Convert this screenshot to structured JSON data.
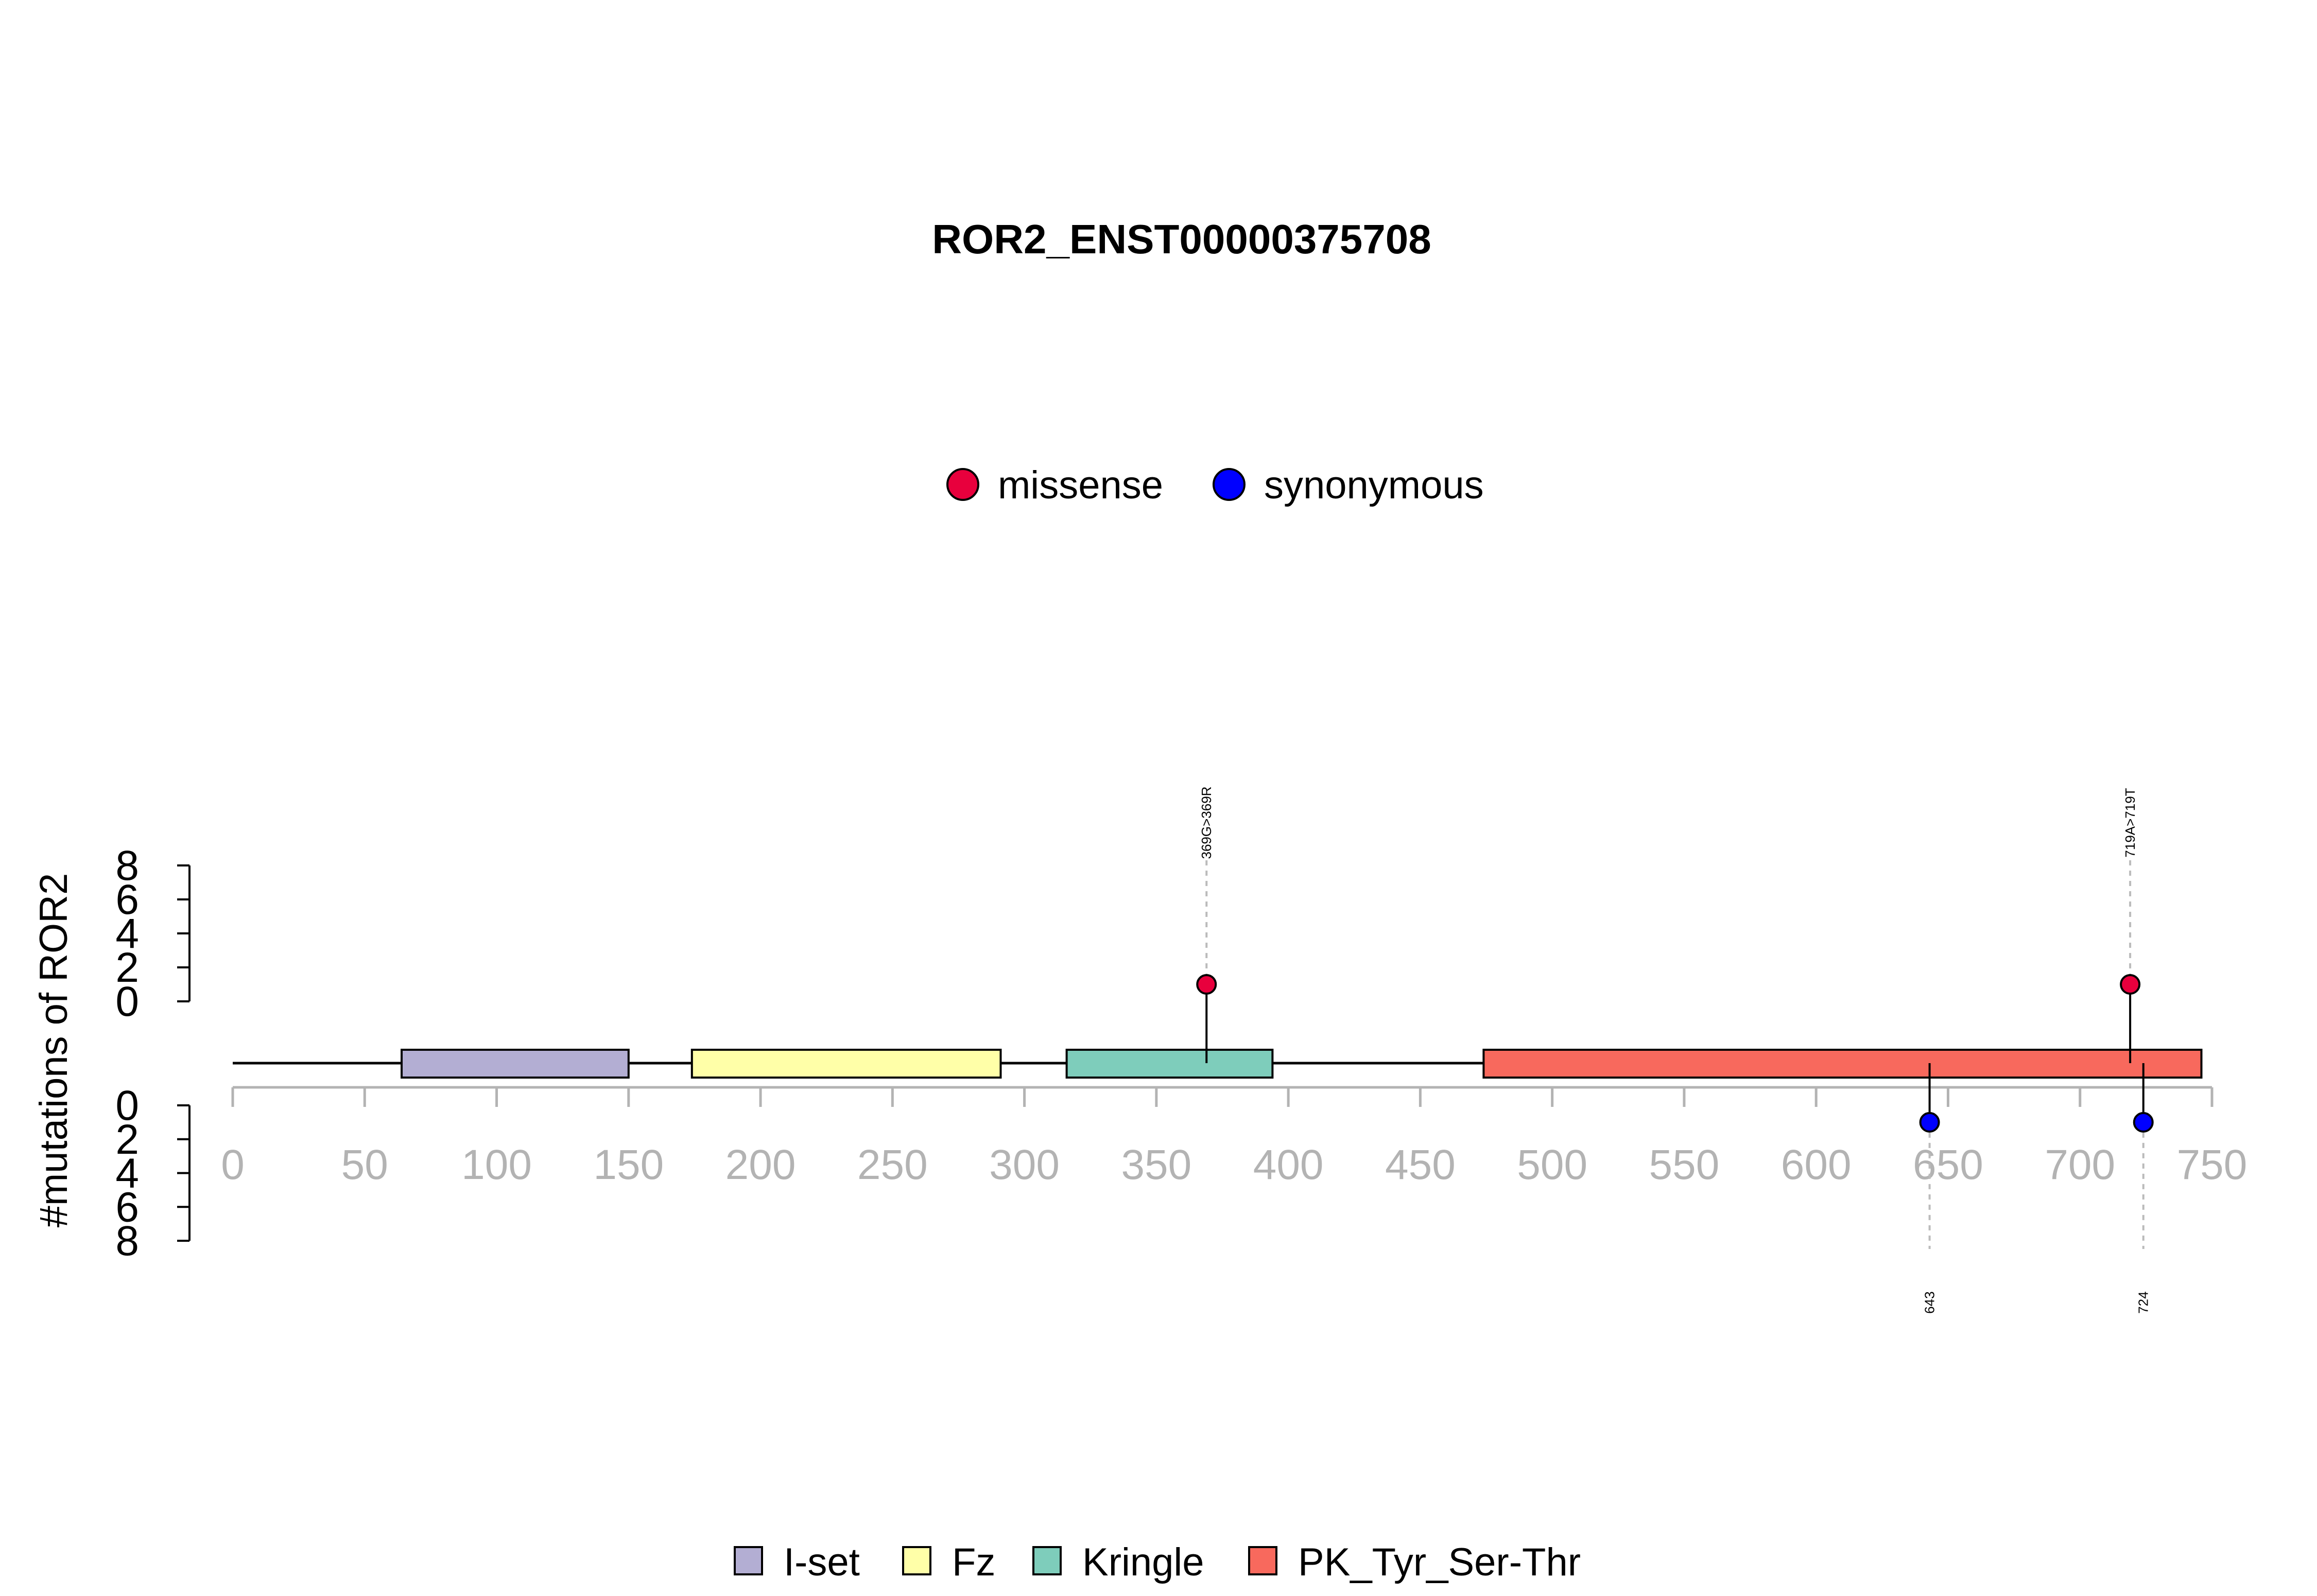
{
  "chart_data": {
    "type": "lollipop",
    "title": "ROR2_ENST00000375708",
    "ylabel": "#mutations of ROR2",
    "protein_length": 745,
    "x_range": [
      0,
      750
    ],
    "x_ticks": [
      0,
      50,
      100,
      150,
      200,
      250,
      300,
      350,
      400,
      450,
      500,
      550,
      600,
      650,
      700,
      750
    ],
    "y_ticks": [
      0,
      2,
      4,
      6,
      8
    ],
    "y_range": [
      0,
      8
    ],
    "mutation_legend": [
      {
        "label": "missense",
        "color": "#e8003d"
      },
      {
        "label": "synonymous",
        "color": "#0000ff"
      }
    ],
    "domains": [
      {
        "name": "I-set",
        "start": 64,
        "end": 150,
        "color": "#b3aed3"
      },
      {
        "name": "Fz",
        "start": 174,
        "end": 291,
        "color": "#ffffa8"
      },
      {
        "name": "Kringle",
        "start": 316,
        "end": 394,
        "color": "#7ecdbb"
      },
      {
        "name": "PK_Tyr_Ser-Thr",
        "start": 474,
        "end": 746,
        "color": "#f8695d"
      }
    ],
    "mutations_top": [
      {
        "position": 369,
        "count": 1,
        "type": "missense",
        "label": "369G>369R"
      },
      {
        "position": 719,
        "count": 1,
        "type": "missense",
        "label": "719A>719T"
      }
    ],
    "mutations_bottom": [
      {
        "position": 643,
        "count": 1,
        "type": "synonymous",
        "label": "643"
      },
      {
        "position": 724,
        "count": 1,
        "type": "synonymous",
        "label": "724"
      }
    ]
  }
}
